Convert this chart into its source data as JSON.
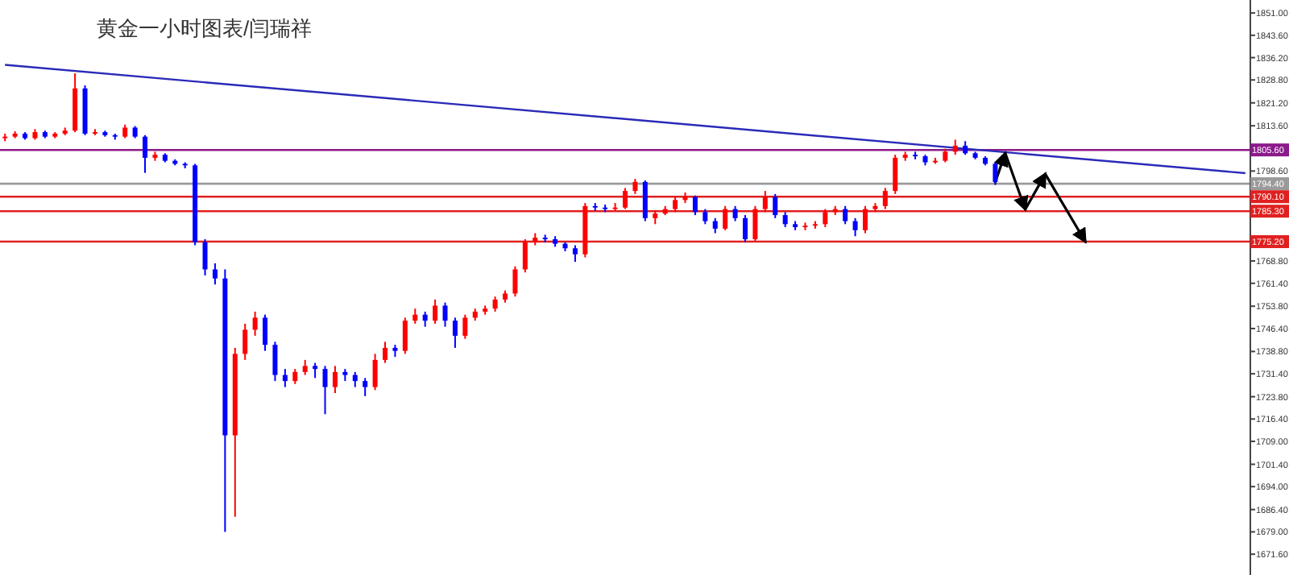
{
  "chart_data": {
    "type": "candlestick",
    "title": "黄金一小时图表/闫瑞祥",
    "categories": [
      null,
      null,
      null,
      null,
      null,
      null,
      null,
      null,
      null,
      null,
      null,
      null,
      null,
      null,
      null,
      null,
      null,
      null,
      null,
      null,
      null,
      null,
      null,
      null,
      null,
      null,
      null,
      null,
      null,
      null,
      null,
      null,
      null,
      null,
      null,
      null,
      null,
      null,
      null,
      null,
      null,
      null,
      null,
      null,
      null,
      null,
      null,
      null,
      null,
      null,
      null,
      null,
      null,
      null,
      null,
      null,
      null,
      null,
      null,
      null,
      null,
      null,
      null,
      null,
      null,
      null,
      null,
      null,
      null,
      null,
      null,
      null,
      null,
      null,
      null,
      null,
      null,
      null,
      null,
      null,
      null,
      null,
      null,
      null,
      null,
      null,
      null,
      null,
      null,
      null,
      null,
      null,
      null,
      null,
      null,
      null,
      null,
      null,
      null,
      null,
      null,
      null,
      null,
      null,
      null,
      null,
      null,
      null,
      null,
      null,
      null,
      null,
      null,
      null,
      null,
      null,
      null,
      null,
      null,
      null,
      null,
      null,
      null,
      null,
      null
    ],
    "ohlc": [
      [
        1809.5,
        1811,
        1808.5,
        1810
      ],
      [
        1810,
        1811.8,
        1809.5,
        1811
      ],
      [
        1811,
        1811.5,
        1809,
        1809.5
      ],
      [
        1809.5,
        1812.5,
        1809,
        1811.5
      ],
      [
        1811.5,
        1812,
        1809.5,
        1810
      ],
      [
        1810,
        1811.5,
        1809.5,
        1811
      ],
      [
        1811,
        1813,
        1810.5,
        1812
      ],
      [
        1812,
        1831,
        1811.5,
        1826
      ],
      [
        1826,
        1827,
        1810.5,
        1811
      ],
      [
        1811,
        1812.5,
        1810.5,
        1811.5
      ],
      [
        1811.5,
        1812,
        1810,
        1810.5
      ],
      [
        1810.5,
        1811,
        1809,
        1810
      ],
      [
        1810,
        1814,
        1809.5,
        1813
      ],
      [
        1813,
        1813.5,
        1809.5,
        1810
      ],
      [
        1810,
        1810.5,
        1798,
        1803
      ],
      [
        1803,
        1805,
        1802,
        1804
      ],
      [
        1804,
        1804.5,
        1801.5,
        1802
      ],
      [
        1802,
        1802.5,
        1800.5,
        1801
      ],
      [
        1801,
        1801.5,
        1799.5,
        1800.5
      ],
      [
        1800.5,
        1801,
        1774,
        1775
      ],
      [
        1775,
        1776,
        1764,
        1766
      ],
      [
        1766,
        1768,
        1761,
        1763
      ],
      [
        1763,
        1766,
        1679,
        1711
      ],
      [
        1711,
        1740,
        1684,
        1738
      ],
      [
        1738,
        1748,
        1736,
        1746
      ],
      [
        1746,
        1752,
        1744,
        1750
      ],
      [
        1750,
        1751,
        1739,
        1741
      ],
      [
        1741,
        1742,
        1729,
        1731
      ],
      [
        1731,
        1733,
        1727,
        1729
      ],
      [
        1729,
        1733,
        1728,
        1732
      ],
      [
        1732,
        1736,
        1731,
        1734
      ],
      [
        1734,
        1735,
        1730,
        1733
      ],
      [
        1733,
        1734,
        1718,
        1727
      ],
      [
        1727,
        1734,
        1725,
        1732
      ],
      [
        1732,
        1733,
        1729,
        1731
      ],
      [
        1731,
        1732,
        1727,
        1729
      ],
      [
        1729,
        1730,
        1724,
        1727
      ],
      [
        1727,
        1738,
        1726,
        1736
      ],
      [
        1736,
        1742,
        1735,
        1740
      ],
      [
        1740,
        1741,
        1737,
        1739
      ],
      [
        1739,
        1750,
        1738,
        1749
      ],
      [
        1749,
        1753,
        1748,
        1751
      ],
      [
        1751,
        1752,
        1747,
        1749
      ],
      [
        1749,
        1756,
        1748,
        1754
      ],
      [
        1754,
        1755,
        1747,
        1749
      ],
      [
        1749,
        1750,
        1740,
        1744
      ],
      [
        1744,
        1751,
        1743,
        1750
      ],
      [
        1750,
        1753,
        1749,
        1752
      ],
      [
        1752,
        1754,
        1751,
        1753
      ],
      [
        1753,
        1757,
        1752,
        1756
      ],
      [
        1756,
        1759,
        1755,
        1758
      ],
      [
        1758,
        1767,
        1757,
        1766
      ],
      [
        1766,
        1776,
        1765,
        1775
      ],
      [
        1775,
        1778,
        1774,
        1776.5
      ],
      [
        1776.5,
        1777.5,
        1775,
        1776
      ],
      [
        1776,
        1777,
        1773.5,
        1774.5
      ],
      [
        1774.5,
        1775,
        1772,
        1773
      ],
      [
        1773,
        1774,
        1768.5,
        1771
      ],
      [
        1771,
        1788,
        1770,
        1787
      ],
      [
        1787,
        1788,
        1785.5,
        1786.5
      ],
      [
        1786.5,
        1787.5,
        1785,
        1786
      ],
      [
        1786,
        1788,
        1785.5,
        1786.5
      ],
      [
        1786.5,
        1793,
        1786,
        1792
      ],
      [
        1792,
        1796,
        1791,
        1795
      ],
      [
        1795,
        1795.5,
        1782,
        1783
      ],
      [
        1783,
        1785.5,
        1781,
        1784.5
      ],
      [
        1784.5,
        1787,
        1784,
        1786
      ],
      [
        1786,
        1790,
        1785,
        1789
      ],
      [
        1789,
        1791.5,
        1788,
        1790
      ],
      [
        1790,
        1790.5,
        1784,
        1785
      ],
      [
        1785,
        1786,
        1781,
        1782
      ],
      [
        1782,
        1783,
        1778,
        1779.5
      ],
      [
        1779.5,
        1787,
        1779,
        1786
      ],
      [
        1786,
        1787,
        1782,
        1783
      ],
      [
        1783,
        1784,
        1775,
        1776
      ],
      [
        1776,
        1787,
        1775.5,
        1786
      ],
      [
        1786,
        1792,
        1785,
        1790
      ],
      [
        1790,
        1791,
        1783,
        1784
      ],
      [
        1784,
        1785,
        1780,
        1781
      ],
      [
        1781,
        1782,
        1779,
        1780
      ],
      [
        1780,
        1781.5,
        1779,
        1780.5
      ],
      [
        1780.5,
        1782,
        1779.5,
        1781
      ],
      [
        1781,
        1786,
        1780,
        1785
      ],
      [
        1785,
        1787,
        1784,
        1786
      ],
      [
        1786,
        1787,
        1781,
        1782
      ],
      [
        1782,
        1783,
        1777,
        1779
      ],
      [
        1779,
        1787,
        1778,
        1786
      ],
      [
        1786,
        1788,
        1785,
        1787
      ],
      [
        1787,
        1793,
        1786,
        1792
      ],
      [
        1792,
        1804,
        1791,
        1803
      ],
      [
        1803,
        1805,
        1802,
        1804
      ],
      [
        1804,
        1805,
        1802.5,
        1803.5
      ],
      [
        1803.5,
        1804,
        1800.5,
        1801.5
      ],
      [
        1801.5,
        1803,
        1801,
        1802
      ],
      [
        1802,
        1806,
        1801.5,
        1805
      ],
      [
        1805,
        1809,
        1804,
        1807
      ],
      [
        1807,
        1808.5,
        1804,
        1804.5
      ],
      [
        1804.5,
        1805,
        1802.5,
        1803
      ],
      [
        1803,
        1803.5,
        1800.5,
        1801
      ],
      [
        1801,
        1801.5,
        1794,
        1795
      ],
      null,
      null,
      null,
      null,
      null,
      null,
      null,
      null,
      null,
      null,
      null,
      null,
      null,
      null,
      null,
      null,
      null,
      null,
      null,
      null,
      null,
      null,
      null,
      null,
      null
    ],
    "colors": [
      "#ff0000",
      "#ff0000",
      "#0000ff",
      "#ff0000",
      "#0000ff",
      "#ff0000",
      "#ff0000",
      "#ff0000",
      "#0000ff",
      "#ff0000",
      "#0000ff",
      "#0000ff",
      "#ff0000",
      "#0000ff",
      "#0000ff",
      "#ff0000",
      "#0000ff",
      "#0000ff",
      "#0000ff",
      "#0000ff",
      "#0000ff",
      "#0000ff",
      "#0000ff",
      "#ff0000",
      "#ff0000",
      "#ff0000",
      "#0000ff",
      "#0000ff",
      "#0000ff",
      "#ff0000",
      "#ff0000",
      "#0000ff",
      "#0000ff",
      "#ff0000",
      "#0000ff",
      "#0000ff",
      "#0000ff",
      "#ff0000",
      "#ff0000",
      "#0000ff",
      "#ff0000",
      "#ff0000",
      "#0000ff",
      "#ff0000",
      "#0000ff",
      "#0000ff",
      "#ff0000",
      "#ff0000",
      "#ff0000",
      "#ff0000",
      "#ff0000",
      "#ff0000",
      "#ff0000",
      "#ff0000",
      "#0000ff",
      "#0000ff",
      "#0000ff",
      "#0000ff",
      "#ff0000",
      "#0000ff",
      "#0000ff",
      "#ff0000",
      "#ff0000",
      "#ff0000",
      "#0000ff",
      "#ff0000",
      "#ff0000",
      "#ff0000",
      "#ff0000",
      "#0000ff",
      "#0000ff",
      "#0000ff",
      "#ff0000",
      "#0000ff",
      "#0000ff",
      "#ff0000",
      "#ff0000",
      "#0000ff",
      "#0000ff",
      "#0000ff",
      "#ff0000",
      "#ff0000",
      "#ff0000",
      "#ff0000",
      "#0000ff",
      "#0000ff",
      "#ff0000",
      "#ff0000",
      "#ff0000",
      "#ff0000",
      "#ff0000",
      "#0000ff",
      "#0000ff",
      "#ff0000",
      "#ff0000",
      "#ff0000",
      "#0000ff",
      "#0000ff",
      "#0000ff",
      "#0000ff",
      null,
      null,
      null,
      null,
      null,
      null,
      null,
      null,
      null,
      null,
      null,
      null,
      null,
      null,
      null,
      null,
      null,
      null,
      null,
      null,
      null,
      null,
      null,
      null,
      null
    ],
    "series": [
      {
        "type": "line",
        "color": "#2a2ab8",
        "values": [
          1833.8,
          null,
          null,
          null,
          null,
          null,
          null,
          null,
          null,
          null,
          null,
          null,
          null,
          null,
          null,
          null,
          null,
          null,
          null,
          null,
          null,
          null,
          null,
          null,
          null,
          null,
          null,
          null,
          null,
          null,
          null,
          null,
          null,
          null,
          null,
          null,
          null,
          null,
          null,
          null,
          null,
          null,
          null,
          null,
          null,
          null,
          null,
          null,
          null,
          null,
          null,
          null,
          null,
          null,
          null,
          null,
          null,
          null,
          null,
          null,
          null,
          null,
          null,
          null,
          null,
          null,
          null,
          null,
          null,
          null,
          null,
          null,
          null,
          null,
          null,
          null,
          null,
          null,
          null,
          null,
          null,
          null,
          null,
          null,
          null,
          null,
          null,
          null,
          null,
          null,
          null,
          null,
          null,
          null,
          null,
          null,
          null,
          null,
          null,
          null,
          null,
          null,
          null,
          null,
          null,
          null,
          null,
          null,
          null,
          null,
          null,
          null,
          null,
          null,
          null,
          null,
          null,
          null,
          null,
          null,
          null,
          null,
          null,
          null,
          1797.9
        ]
      },
      {
        "type": "line",
        "color": "#000000",
        "values": [
          null,
          null,
          null,
          null,
          null,
          null,
          null,
          null,
          null,
          null,
          null,
          null,
          null,
          null,
          null,
          null,
          null,
          null,
          null,
          null,
          null,
          null,
          null,
          null,
          null,
          null,
          null,
          null,
          null,
          null,
          null,
          null,
          null,
          null,
          null,
          null,
          null,
          null,
          null,
          null,
          null,
          null,
          null,
          null,
          null,
          null,
          null,
          null,
          null,
          null,
          null,
          null,
          null,
          null,
          null,
          null,
          null,
          null,
          null,
          null,
          null,
          null,
          null,
          null,
          null,
          null,
          null,
          null,
          null,
          null,
          null,
          null,
          null,
          null,
          null,
          null,
          null,
          null,
          null,
          null,
          null,
          null,
          null,
          null,
          null,
          null,
          null,
          null,
          null,
          null,
          null,
          null,
          null,
          null,
          null,
          null,
          null,
          null,
          null,
          1794.9,
          1804.5,
          null,
          1785.9,
          null,
          1797.6,
          null,
          null,
          null,
          1775.2,
          null,
          null,
          null,
          null,
          null,
          null,
          null,
          null,
          null,
          null,
          null,
          null,
          null,
          null,
          null,
          null
        ]
      }
    ],
    "ref_lines": [
      {
        "axis": "y",
        "value": 1805.6,
        "label": "1805.60",
        "color": "#8b1a8b"
      },
      {
        "axis": "y",
        "value": 1794.4,
        "label": "1794.40",
        "color": "#9a9a9a"
      },
      {
        "axis": "y",
        "value": 1790.1,
        "label": "1790.10",
        "color": "#e02020"
      },
      {
        "axis": "y",
        "value": 1785.3,
        "label": "1785.30",
        "color": "#e02020"
      },
      {
        "axis": "y",
        "value": 1775.2,
        "label": "1775.20",
        "color": "#e02020"
      }
    ],
    "ylim": [
      1664.7,
      1855.3
    ],
    "yticks": [
      {
        "value": 1851,
        "label": "1851.00"
      },
      {
        "value": 1843.6,
        "label": "1843.60"
      },
      {
        "value": 1836.2,
        "label": "1836.20"
      },
      {
        "value": 1828.8,
        "label": "1828.80"
      },
      {
        "value": 1821.2,
        "label": "1821.20"
      },
      {
        "value": 1813.6,
        "label": "1813.60"
      },
      {
        "value": 1798.6,
        "label": "1798.60"
      },
      {
        "value": 1768.8,
        "label": "1768.80"
      },
      {
        "value": 1761.4,
        "label": "1761.40"
      },
      {
        "value": 1753.8,
        "label": "1753.80"
      },
      {
        "value": 1746.4,
        "label": "1746.40"
      },
      {
        "value": 1738.8,
        "label": "1738.80"
      },
      {
        "value": 1731.4,
        "label": "1731.40"
      },
      {
        "value": 1723.8,
        "label": "1723.80"
      },
      {
        "value": 1716.4,
        "label": "1716.40"
      },
      {
        "value": 1709,
        "label": "1709.00"
      },
      {
        "value": 1701.4,
        "label": "1701.40"
      },
      {
        "value": 1694,
        "label": "1694.00"
      },
      {
        "value": 1686.4,
        "label": "1686.40"
      },
      {
        "value": 1679,
        "label": "1679.00"
      },
      {
        "value": 1671.6,
        "label": "1671.60"
      }
    ],
    "grid": false
  }
}
